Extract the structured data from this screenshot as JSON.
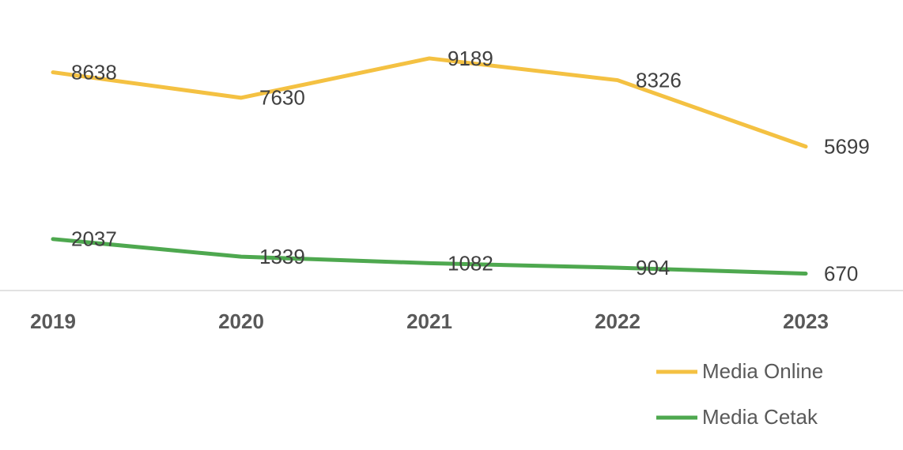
{
  "chart_data": {
    "type": "line",
    "categories": [
      "2019",
      "2020",
      "2021",
      "2022",
      "2023"
    ],
    "series": [
      {
        "name": "Media Online",
        "color": "#f4c142",
        "values": [
          8638,
          7630,
          9189,
          8326,
          5699
        ]
      },
      {
        "name": "Media Cetak",
        "color": "#4ea84f",
        "values": [
          2037,
          1339,
          1082,
          904,
          670
        ]
      }
    ],
    "ylim": [
      0,
      10000
    ]
  }
}
